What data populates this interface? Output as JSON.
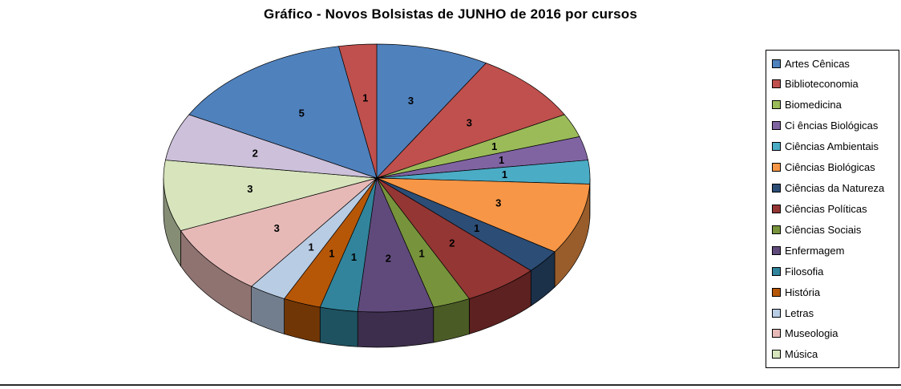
{
  "title": "Gráfico - Novos Bolsistas de JUNHO de 2016 por cursos",
  "chart_data": {
    "type": "pie",
    "style": "3d-pie",
    "title": "Gráfico - Novos Bolsistas de JUNHO de 2016 por cursos",
    "total": 35,
    "legend_position": "right",
    "data_labels": "values",
    "slices": [
      {
        "label": "Artes Cênicas",
        "value": 3,
        "color": "#4F81BD",
        "in_legend": true
      },
      {
        "label": "Biblioteconomia",
        "value": 3,
        "color": "#C0504D",
        "in_legend": true
      },
      {
        "label": "Biomedicina",
        "value": 1,
        "color": "#9BBB59",
        "in_legend": true
      },
      {
        "label": "Ci ências Biológicas",
        "value": 1,
        "color": "#8064A2",
        "in_legend": true
      },
      {
        "label": "Ciências Ambientais",
        "value": 1,
        "color": "#4BACC6",
        "in_legend": true
      },
      {
        "label": "Ciências Biológicas",
        "value": 3,
        "color": "#F79646",
        "in_legend": true
      },
      {
        "label": "Ciências da Natureza",
        "value": 1,
        "color": "#2C4D75",
        "in_legend": true
      },
      {
        "label": "Ciências Políticas",
        "value": 2,
        "color": "#943634",
        "in_legend": true
      },
      {
        "label": "Ciências Sociais",
        "value": 1,
        "color": "#77933C",
        "in_legend": true
      },
      {
        "label": "Enfermagem",
        "value": 2,
        "color": "#604A7B",
        "in_legend": true
      },
      {
        "label": "Filosofia",
        "value": 1,
        "color": "#31849B",
        "in_legend": true
      },
      {
        "label": "História",
        "value": 1,
        "color": "#B65708",
        "in_legend": true
      },
      {
        "label": "Letras",
        "value": 1,
        "color": "#B8CCE4",
        "in_legend": true
      },
      {
        "label": "Museologia",
        "value": 3,
        "color": "#E6B9B7",
        "in_legend": true
      },
      {
        "label": "Música",
        "value": 3,
        "color": "#D7E4BC",
        "in_legend": true
      },
      {
        "label": "",
        "value": 2,
        "color": "#CCC0DA",
        "in_legend": false
      },
      {
        "label": "",
        "value": 5,
        "color": "#4F81BD",
        "in_legend": false
      },
      {
        "label": "",
        "value": 1,
        "color": "#C0504D",
        "in_legend": false
      }
    ]
  }
}
